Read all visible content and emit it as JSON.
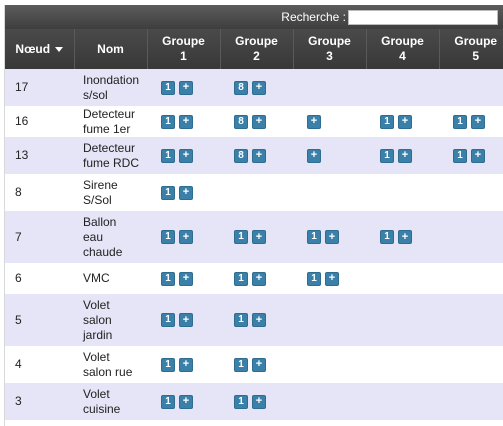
{
  "search": {
    "label": "Recherche :",
    "value": ""
  },
  "columns": [
    {
      "line1": "Nœud",
      "line2": "",
      "sortable": true
    },
    {
      "line1": "Nom",
      "line2": ""
    },
    {
      "line1": "Groupe",
      "line2": "1"
    },
    {
      "line1": "Groupe",
      "line2": "2"
    },
    {
      "line1": "Groupe",
      "line2": "3"
    },
    {
      "line1": "Groupe",
      "line2": "4"
    },
    {
      "line1": "Groupe",
      "line2": "5"
    }
  ],
  "colors": {
    "header": "#3e3e3e",
    "row_alt": "#e5e5f7",
    "button": "#3a80a8"
  },
  "plus_label": "+",
  "rows": [
    {
      "node": "17",
      "name": [
        "Inondation",
        "s/sol"
      ],
      "groups": [
        [
          "1"
        ],
        [
          "8"
        ],
        null,
        null,
        null
      ]
    },
    {
      "node": "16",
      "name": [
        "Detecteur",
        "fume 1er"
      ],
      "groups": [
        [
          "1"
        ],
        [
          "8"
        ],
        [],
        [
          "1"
        ],
        [
          "1"
        ]
      ]
    },
    {
      "node": "13",
      "name": [
        "Detecteur",
        "fume RDC"
      ],
      "groups": [
        [
          "1"
        ],
        [
          "8"
        ],
        [],
        [
          "1"
        ],
        [
          "1"
        ]
      ]
    },
    {
      "node": "8",
      "name": [
        "Sirene",
        "S/Sol"
      ],
      "groups": [
        [
          "1"
        ],
        null,
        null,
        null,
        null
      ]
    },
    {
      "node": "7",
      "name": [
        "Ballon",
        "eau",
        "chaude"
      ],
      "groups": [
        [
          "1"
        ],
        [
          "1"
        ],
        [
          "1"
        ],
        [
          "1"
        ],
        null
      ]
    },
    {
      "node": "6",
      "name": [
        "VMC"
      ],
      "groups": [
        [
          "1"
        ],
        [
          "1"
        ],
        [
          "1"
        ],
        null,
        null
      ]
    },
    {
      "node": "5",
      "name": [
        "Volet",
        "salon",
        "jardin"
      ],
      "groups": [
        [
          "1"
        ],
        [
          "1"
        ],
        null,
        null,
        null
      ]
    },
    {
      "node": "4",
      "name": [
        "Volet",
        "salon rue"
      ],
      "groups": [
        [
          "1"
        ],
        [
          "1"
        ],
        null,
        null,
        null
      ]
    },
    {
      "node": "3",
      "name": [
        "Volet",
        "cuisine"
      ],
      "groups": [
        [
          "1"
        ],
        [
          "1"
        ],
        null,
        null,
        null
      ]
    }
  ]
}
